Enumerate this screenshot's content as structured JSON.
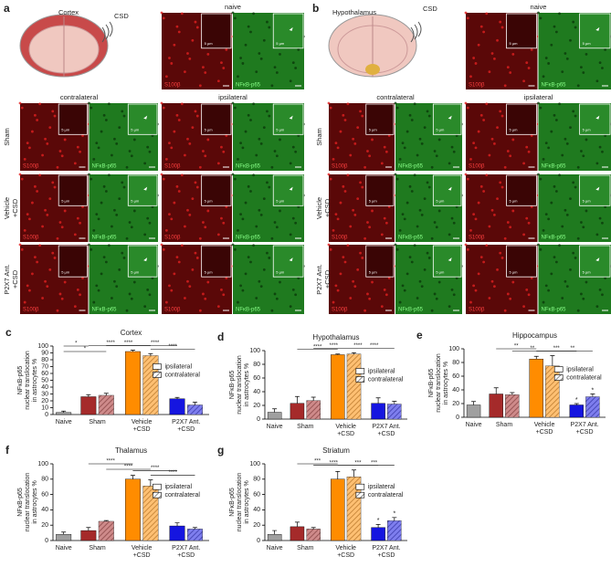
{
  "figure": {
    "a": {
      "letter": "a",
      "region": "Cortex",
      "stim": "CSD",
      "naive": "naive",
      "columns": [
        "contralateral",
        "ipsilateral"
      ],
      "rows": [
        [
          "Sham"
        ],
        [
          "Vehicle",
          "+CSD"
        ],
        [
          "P2X7 Ant.",
          "+CSD"
        ]
      ],
      "channels": [
        "S100β",
        "NFκB-p65"
      ],
      "scale": "5 µm"
    },
    "b": {
      "letter": "b",
      "region": "Hypothalamus",
      "stim": "CSD",
      "naive": "naive",
      "columns": [
        "contralateral",
        "ipsilateral"
      ],
      "rows": [
        [
          "Sham"
        ],
        [
          "Vehicle",
          "+CSD"
        ],
        [
          "P2X7 Ant.",
          "+CSD"
        ]
      ],
      "channels": [
        "S100β",
        "NFκB-p65"
      ],
      "scale": "5 µm"
    }
  },
  "chart_data": [
    {
      "type": "bar",
      "panel": "c",
      "title": "Cortex",
      "ylabel": [
        "NFκB-p65",
        "nuclear translocation",
        "in astrocytes %"
      ],
      "ylim": [
        0,
        100
      ],
      "yticks": [
        0,
        10,
        20,
        30,
        40,
        50,
        60,
        70,
        80,
        90,
        100
      ],
      "legend": [
        "ipsilateral",
        "contralateral"
      ],
      "groups": [
        {
          "label": [
            "Naive"
          ],
          "color": "#a0a0a0",
          "values": [
            3
          ],
          "errors": [
            2
          ]
        },
        {
          "label": [
            "Sham"
          ],
          "color": "#a52a2a",
          "values": [
            26,
            28
          ],
          "errors": [
            3,
            3
          ]
        },
        {
          "label": [
            "Vehicle",
            "+CSD"
          ],
          "color": "#ff8c00",
          "values": [
            92,
            86
          ],
          "errors": [
            2,
            3
          ]
        },
        {
          "label": [
            "P2X7 Ant.",
            "+CSD"
          ],
          "color": "#1515e0",
          "values": [
            23,
            14
          ],
          "errors": [
            2,
            4
          ]
        }
      ],
      "brackets": [
        {
          "from": 0,
          "to": 1,
          "label": "*"
        },
        {
          "from": 0,
          "to": 2,
          "label": "*"
        },
        {
          "from": 1,
          "to": 3,
          "label": "****"
        },
        {
          "from": 2,
          "to": 4,
          "label": "****"
        },
        {
          "from": 3,
          "to": 5,
          "label": "****"
        },
        {
          "from": 4,
          "to": 6,
          "label": "****"
        }
      ],
      "stars": []
    },
    {
      "type": "bar",
      "panel": "d",
      "title": "Hypothalamus",
      "ylabel": [
        "NFκB-p65",
        "nuclear translocation",
        "in astrocytes %"
      ],
      "ylim": [
        0,
        100
      ],
      "yticks": [
        0,
        20,
        40,
        60,
        80,
        100
      ],
      "legend": [
        "ipsilateral",
        "contralateral"
      ],
      "groups": [
        {
          "label": [
            "Naive"
          ],
          "color": "#a0a0a0",
          "values": [
            10
          ],
          "errors": [
            5
          ]
        },
        {
          "label": [
            "Sham"
          ],
          "color": "#a52a2a",
          "values": [
            23,
            27
          ],
          "errors": [
            10,
            5
          ]
        },
        {
          "label": [
            "Vehicle",
            "+CSD"
          ],
          "color": "#ff8c00",
          "values": [
            94,
            95
          ],
          "errors": [
            1,
            2
          ]
        },
        {
          "label": [
            "P2X7 Ant.",
            "+CSD"
          ],
          "color": "#1515e0",
          "values": [
            23,
            22
          ],
          "errors": [
            8,
            4
          ]
        }
      ],
      "brackets": [
        {
          "from": 1,
          "to": 3,
          "label": "****"
        },
        {
          "from": 2,
          "to": 4,
          "label": "****"
        },
        {
          "from": 3,
          "to": 5,
          "label": "****"
        },
        {
          "from": 4,
          "to": 6,
          "label": "****"
        }
      ],
      "stars": []
    },
    {
      "type": "bar",
      "panel": "e",
      "title": "Hippocampus",
      "ylabel": [
        "NFκB-p65",
        "nuclear translocation",
        "in astrocytes %"
      ],
      "ylim": [
        0,
        100
      ],
      "yticks": [
        0,
        20,
        40,
        60,
        80,
        100
      ],
      "legend": [
        "ipsilateral",
        "contralateral"
      ],
      "groups": [
        {
          "label": [
            "Naive"
          ],
          "color": "#a0a0a0",
          "values": [
            18
          ],
          "errors": [
            5
          ]
        },
        {
          "label": [
            "Sham"
          ],
          "color": "#a52a2a",
          "values": [
            34,
            33
          ],
          "errors": [
            9,
            3
          ]
        },
        {
          "label": [
            "Vehicle",
            "+CSD"
          ],
          "color": "#ff8c00",
          "values": [
            85,
            75
          ],
          "errors": [
            4,
            15
          ]
        },
        {
          "label": [
            "P2X7 Ant.",
            "+CSD"
          ],
          "color": "#1515e0",
          "values": [
            18,
            30
          ],
          "errors": [
            2,
            4
          ]
        }
      ],
      "brackets": [
        {
          "from": 1,
          "to": 3,
          "label": "**"
        },
        {
          "from": 2,
          "to": 4,
          "label": "**"
        },
        {
          "from": 3,
          "to": 5,
          "label": "***"
        },
        {
          "from": 4,
          "to": 6,
          "label": "**"
        }
      ],
      "stars": [
        {
          "bar": 5,
          "label": "*"
        },
        {
          "bar": 6,
          "label": "*"
        }
      ]
    },
    {
      "type": "bar",
      "panel": "f",
      "title": "Thalamus",
      "ylabel": [
        "NFκB-p65",
        "nuclear translocation",
        "in astrocytes %"
      ],
      "ylim": [
        0,
        100
      ],
      "yticks": [
        0,
        20,
        40,
        60,
        80,
        100
      ],
      "legend": [
        "ipsilateral",
        "contralateral"
      ],
      "groups": [
        {
          "label": [
            "Naive"
          ],
          "color": "#a0a0a0",
          "values": [
            8
          ],
          "errors": [
            3
          ]
        },
        {
          "label": [
            "Sham"
          ],
          "color": "#a52a2a",
          "values": [
            13,
            25
          ],
          "errors": [
            4,
            1
          ]
        },
        {
          "label": [
            "Vehicle",
            "+CSD"
          ],
          "color": "#ff8c00",
          "values": [
            80,
            71
          ],
          "errors": [
            5,
            8
          ]
        },
        {
          "label": [
            "P2X7 Ant.",
            "+CSD"
          ],
          "color": "#1515e0",
          "values": [
            19,
            15
          ],
          "errors": [
            4,
            2
          ]
        }
      ],
      "brackets": [
        {
          "from": 1,
          "to": 3,
          "label": "****"
        },
        {
          "from": 2,
          "to": 4,
          "label": "****"
        },
        {
          "from": 3,
          "to": 5,
          "label": "****"
        },
        {
          "from": 4,
          "to": 6,
          "label": "****"
        }
      ],
      "stars": []
    },
    {
      "type": "bar",
      "panel": "g",
      "title": "Striatum",
      "ylabel": [
        "NFκB-p65",
        "nuclear translocation",
        "in astrocytes %"
      ],
      "ylim": [
        0,
        100
      ],
      "yticks": [
        0,
        20,
        40,
        60,
        80,
        100
      ],
      "legend": [
        "ipsilateral",
        "contralateral"
      ],
      "groups": [
        {
          "label": [
            "Naive"
          ],
          "color": "#a0a0a0",
          "values": [
            8
          ],
          "errors": [
            5
          ]
        },
        {
          "label": [
            "Sham"
          ],
          "color": "#a52a2a",
          "values": [
            18,
            15
          ],
          "errors": [
            6,
            2
          ]
        },
        {
          "label": [
            "Vehicle",
            "+CSD"
          ],
          "color": "#ff8c00",
          "values": [
            80,
            83
          ],
          "errors": [
            10,
            9
          ]
        },
        {
          "label": [
            "P2X7 Ant.",
            "+CSD"
          ],
          "color": "#1515e0",
          "values": [
            17,
            26
          ],
          "errors": [
            4,
            4
          ]
        }
      ],
      "brackets": [
        {
          "from": 1,
          "to": 3,
          "label": "***"
        },
        {
          "from": 2,
          "to": 4,
          "label": "****"
        },
        {
          "from": 3,
          "to": 5,
          "label": "***"
        },
        {
          "from": 4,
          "to": 6,
          "label": "***"
        }
      ],
      "stars": [
        {
          "bar": 5,
          "label": "*"
        },
        {
          "bar": 6,
          "label": "*"
        }
      ]
    }
  ]
}
